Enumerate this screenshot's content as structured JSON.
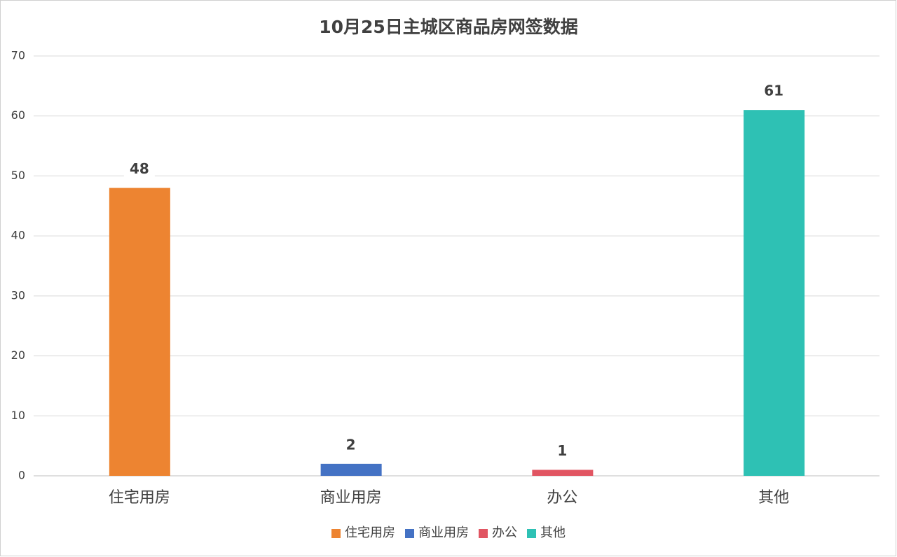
{
  "chart_data": {
    "type": "bar",
    "title": "10月25日主城区商品房网签数据",
    "categories": [
      "住宅用房",
      "商业用房",
      "办公",
      "其他"
    ],
    "values": [
      48,
      2,
      1,
      61
    ],
    "colors": [
      "#ed8431",
      "#4472c4",
      "#e15562",
      "#2ec1b4"
    ],
    "ylim": [
      0,
      70
    ],
    "yticks": [
      0,
      10,
      20,
      30,
      40,
      50,
      60,
      70
    ],
    "grid": true,
    "data_labels": true,
    "legend": "bottom"
  }
}
